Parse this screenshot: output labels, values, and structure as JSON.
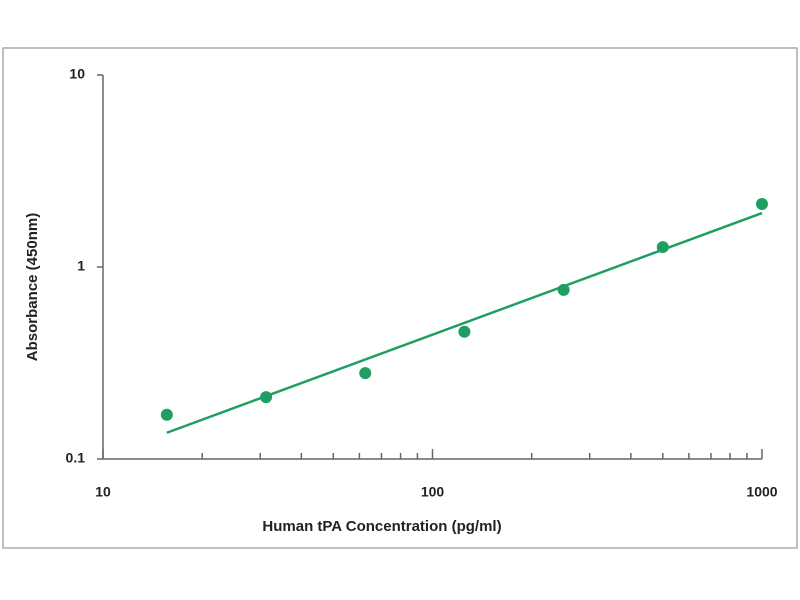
{
  "chart_data": {
    "type": "scatter",
    "x_label": "Human tPA Concentration (pg/ml)",
    "y_label": "Absorbance (450nm)",
    "x": [
      15.625,
      31.25,
      62.5,
      125,
      250,
      500,
      1000
    ],
    "series": [
      {
        "color": "#1f9e62",
        "values": [
          0.17,
          0.21,
          0.28,
          0.46,
          0.76,
          1.27,
          2.13
        ]
      }
    ],
    "trendline": {
      "x": [
        15.625,
        1000
      ],
      "values": [
        0.137,
        1.91
      ],
      "color": "#1f9e62"
    },
    "xlog": true,
    "ylog": true,
    "xlim": [
      10,
      1000
    ],
    "ylim": [
      0.1,
      10
    ],
    "xticks": [
      10,
      100,
      1000
    ],
    "xminor_ticks": [
      20,
      30,
      40,
      50,
      60,
      70,
      80,
      90,
      200,
      300,
      400,
      500,
      600,
      700,
      800,
      900
    ],
    "yticks": [
      0.1,
      1,
      10
    ]
  }
}
